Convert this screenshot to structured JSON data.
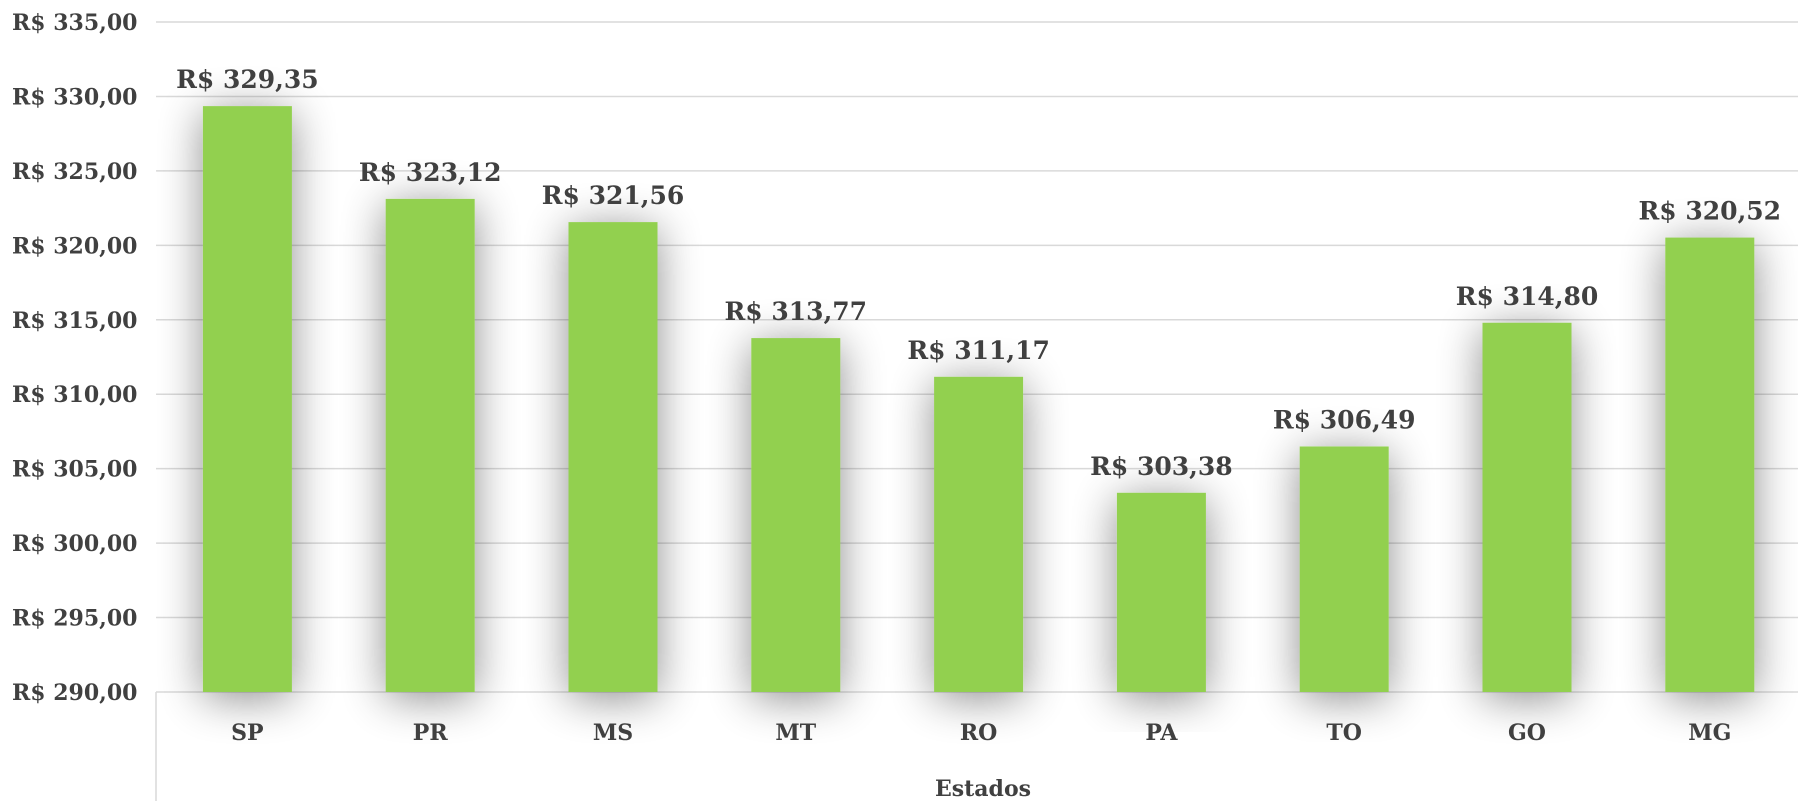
{
  "chart_data": {
    "type": "bar",
    "categories": [
      "SP",
      "PR",
      "MS",
      "MT",
      "RO",
      "PA",
      "TO",
      "GO",
      "MG"
    ],
    "values": [
      329.35,
      323.12,
      321.56,
      313.77,
      311.17,
      303.38,
      306.49,
      314.8,
      320.52
    ],
    "value_labels": [
      "R$ 329,35",
      "R$ 323,12",
      "R$ 321,56",
      "R$ 313,77",
      "R$ 311,17",
      "R$ 303,38",
      "R$ 306,49",
      "R$ 314,80",
      "R$ 320,52"
    ],
    "title": "",
    "xlabel": "Estados",
    "ylabel": "",
    "ylim": [
      290,
      335
    ],
    "y_ticks": [
      290,
      295,
      300,
      305,
      310,
      315,
      320,
      325,
      330,
      335
    ],
    "y_tick_labels": [
      "R$ 290,00",
      "R$ 295,00",
      "R$ 300,00",
      "R$ 305,00",
      "R$ 310,00",
      "R$ 315,00",
      "R$ 320,00",
      "R$ 325,00",
      "R$ 330,00",
      "R$ 335,00"
    ],
    "grid": true,
    "legend": "none",
    "bar_color": "#92d050",
    "grid_color": "#d9d9d9",
    "text_color": "#404040"
  }
}
